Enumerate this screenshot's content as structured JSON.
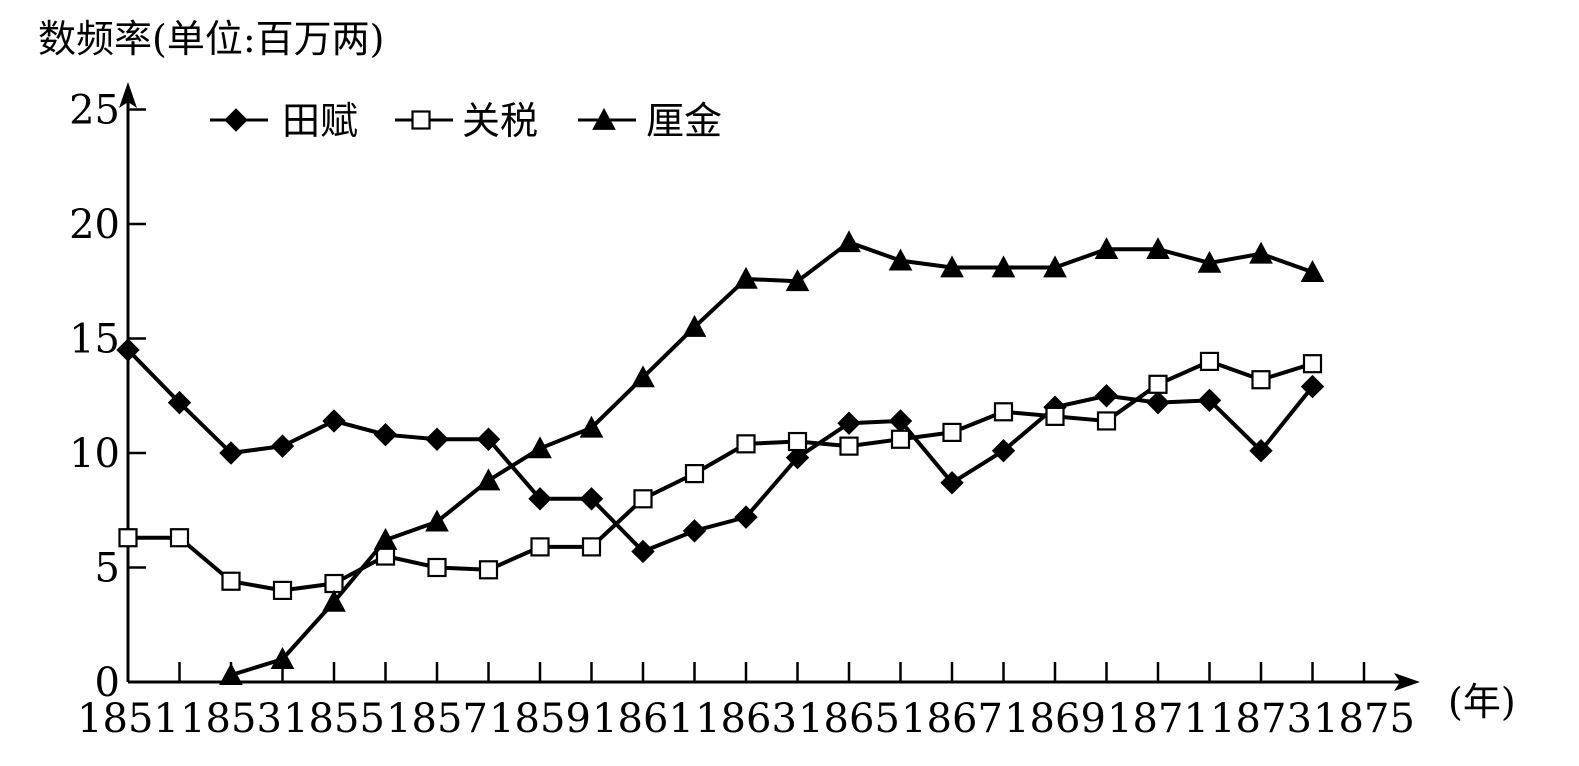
{
  "chart_data": {
    "type": "line",
    "title": "数频率(单位:百万两)",
    "xlabel": "(年)",
    "ylabel": "",
    "xlim": [
      1851,
      1875
    ],
    "ylim": [
      0,
      25
    ],
    "x_ticks": [
      1851,
      1853,
      1855,
      1857,
      1859,
      1861,
      1863,
      1865,
      1867,
      1869,
      1871,
      1873,
      1875
    ],
    "y_ticks": [
      0,
      5,
      10,
      15,
      20,
      25
    ],
    "grid": false,
    "legend_position": "top-left",
    "series": [
      {
        "name": "田赋",
        "marker": "diamond",
        "x": [
          1851,
          1852,
          1853,
          1854,
          1855,
          1856,
          1857,
          1858,
          1859,
          1860,
          1861,
          1862,
          1863,
          1864,
          1865,
          1866,
          1867,
          1868,
          1869,
          1870,
          1871,
          1872,
          1873,
          1874
        ],
        "values": [
          14.5,
          12.2,
          10.0,
          10.3,
          11.4,
          10.8,
          10.6,
          10.6,
          8.0,
          8.0,
          5.7,
          6.6,
          7.2,
          9.8,
          11.3,
          11.4,
          8.7,
          10.1,
          12.0,
          12.5,
          12.2,
          12.3,
          10.1,
          12.9
        ]
      },
      {
        "name": "关税",
        "marker": "square",
        "x": [
          1851,
          1852,
          1853,
          1854,
          1855,
          1856,
          1857,
          1858,
          1859,
          1860,
          1861,
          1862,
          1863,
          1864,
          1865,
          1866,
          1867,
          1868,
          1869,
          1870,
          1871,
          1872,
          1873,
          1874
        ],
        "values": [
          6.3,
          6.3,
          4.4,
          4.0,
          4.3,
          5.5,
          5.0,
          4.9,
          5.9,
          5.9,
          8.0,
          9.1,
          10.4,
          10.5,
          10.3,
          10.6,
          10.9,
          11.8,
          11.6,
          11.4,
          13.0,
          14.0,
          13.2,
          13.9
        ]
      },
      {
        "name": "厘金",
        "marker": "triangle",
        "x": [
          1853,
          1854,
          1855,
          1856,
          1857,
          1858,
          1859,
          1860,
          1861,
          1862,
          1863,
          1864,
          1865,
          1866,
          1867,
          1868,
          1869,
          1870,
          1871,
          1872,
          1873,
          1874
        ],
        "values": [
          0.3,
          1.0,
          3.5,
          6.2,
          7.0,
          8.8,
          10.2,
          11.1,
          13.3,
          15.5,
          17.6,
          17.5,
          19.2,
          18.4,
          18.1,
          18.1,
          18.1,
          18.9,
          18.9,
          18.3,
          18.7,
          17.9
        ]
      }
    ]
  }
}
